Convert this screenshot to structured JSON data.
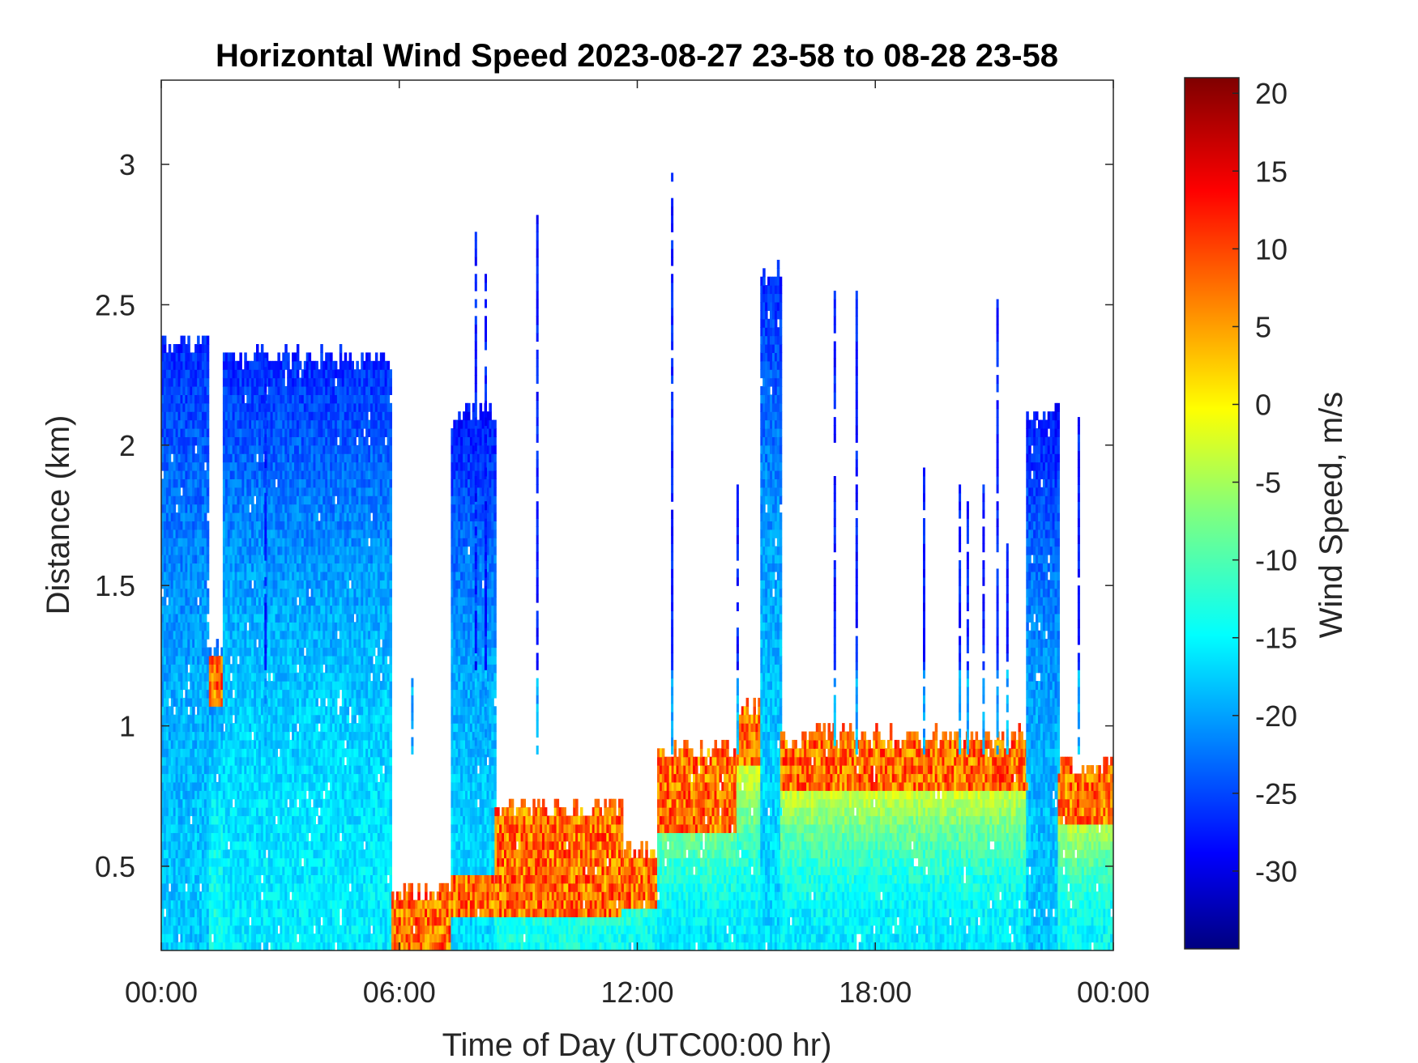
{
  "chart_data": {
    "type": "heatmap",
    "title": "Horizontal Wind Speed 2023-08-27 23-58 to 08-28 23-58",
    "xlabel": "Time of Day (UTC00:00 hr)",
    "ylabel": "Distance (km)",
    "xlim_hours": [
      0,
      24
    ],
    "ylim": [
      0.2,
      3.3
    ],
    "x_ticks": [
      {
        "value": 0,
        "label": "00:00"
      },
      {
        "value": 6,
        "label": "06:00"
      },
      {
        "value": 12,
        "label": "12:00"
      },
      {
        "value": 18,
        "label": "18:00"
      },
      {
        "value": 24,
        "label": "00:00"
      }
    ],
    "y_ticks": [
      {
        "value": 0.5,
        "label": "0.5"
      },
      {
        "value": 1,
        "label": "1"
      },
      {
        "value": 1.5,
        "label": "1.5"
      },
      {
        "value": 2,
        "label": "2"
      },
      {
        "value": 2.5,
        "label": "2.5"
      },
      {
        "value": 3,
        "label": "3"
      }
    ],
    "colorbar": {
      "label": "Wind Speed, m/s",
      "clim": [
        -35,
        21
      ],
      "colormap": "jet",
      "ticks": [
        20,
        15,
        10,
        5,
        0,
        -5,
        -10,
        -15,
        -20,
        -25,
        -30
      ],
      "tick_labels": [
        "20",
        "15",
        "10",
        "5",
        "0",
        "-5",
        "-10",
        "-15",
        "-20",
        "-25",
        "-30"
      ]
    },
    "grid": false,
    "regions": [
      {
        "t0": 0.0,
        "t1": 1.15,
        "top": 2.35,
        "base": -17,
        "topVal": -26,
        "shear": null
      },
      {
        "t0": 1.2,
        "t1": 1.55,
        "top": 1.25,
        "base": -13,
        "topVal": -22,
        "shear": [
          1.05,
          1.25
        ]
      },
      {
        "t0": 1.55,
        "t1": 5.8,
        "top": 2.3,
        "base": -15,
        "topVal": -26,
        "shear": null
      },
      {
        "t0": 5.8,
        "t1": 7.3,
        "top": 0.4,
        "base": 6,
        "topVal": 8,
        "shear": [
          0.2,
          0.4
        ]
      },
      {
        "t0": 7.3,
        "t1": 8.4,
        "top": 2.1,
        "base": -16,
        "topVal": -27,
        "shear": [
          0.3,
          0.45
        ]
      },
      {
        "t0": 8.4,
        "t1": 11.6,
        "top": 0.7,
        "base": -13,
        "topVal": 8,
        "shear": [
          0.3,
          0.7
        ]
      },
      {
        "t0": 11.6,
        "t1": 12.5,
        "top": 0.55,
        "base": -14,
        "topVal": 5,
        "shear": [
          0.35,
          0.55
        ]
      },
      {
        "t0": 12.5,
        "t1": 14.5,
        "top": 0.9,
        "base": -15,
        "topVal": 8,
        "shear": [
          0.6,
          0.9
        ]
      },
      {
        "t0": 14.5,
        "t1": 15.1,
        "top": 1.05,
        "base": -15,
        "topVal": 9,
        "shear": [
          0.85,
          1.05
        ]
      },
      {
        "t0": 15.1,
        "t1": 15.6,
        "top": 2.6,
        "base": -16,
        "topVal": -26,
        "shear": null
      },
      {
        "t0": 15.6,
        "t1": 21.8,
        "top": 0.95,
        "base": -15,
        "topVal": 8,
        "shear": [
          0.75,
          0.95
        ]
      },
      {
        "t0": 21.8,
        "t1": 22.6,
        "top": 2.1,
        "base": -17,
        "topVal": -27,
        "shear": null
      },
      {
        "t0": 22.6,
        "t1": 24.0,
        "top": 0.85,
        "base": -14,
        "topVal": 9,
        "shear": [
          0.65,
          0.85
        ]
      }
    ],
    "spikes": [
      {
        "t": 2.6,
        "top": 2.3
      },
      {
        "t": 9.45,
        "top": 2.8
      },
      {
        "t": 12.85,
        "top": 2.95
      },
      {
        "t": 14.5,
        "top": 1.85
      },
      {
        "t": 16.95,
        "top": 2.55
      },
      {
        "t": 17.5,
        "top": 2.55
      },
      {
        "t": 19.2,
        "top": 1.9
      },
      {
        "t": 20.1,
        "top": 1.85
      },
      {
        "t": 20.3,
        "top": 1.8
      },
      {
        "t": 20.7,
        "top": 1.9
      },
      {
        "t": 21.3,
        "top": 1.65
      },
      {
        "t": 23.1,
        "top": 2.08
      },
      {
        "t": 7.9,
        "top": 2.75
      },
      {
        "t": 8.15,
        "top": 2.6
      },
      {
        "t": 6.3,
        "top": 1.15
      },
      {
        "t": 21.05,
        "top": 2.5
      }
    ]
  }
}
